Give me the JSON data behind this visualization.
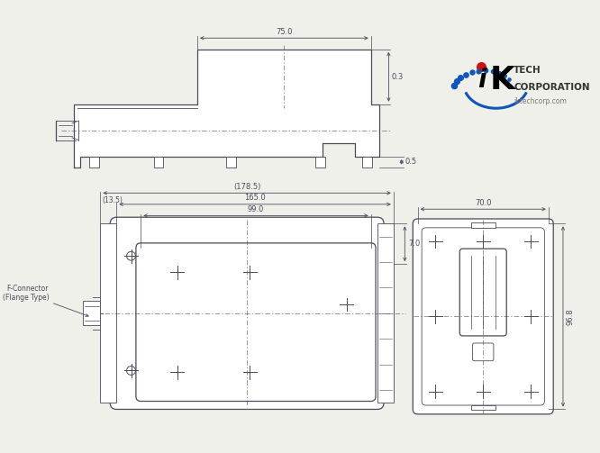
{
  "bg_color": "#f0f0eb",
  "line_color": "#4a4a5a",
  "dim_color": "#4a4a5a",
  "thin_lw": 0.6,
  "med_lw": 0.9,
  "font_size": 6.0,
  "top_view": {
    "dim_75": "75.0",
    "dim_03": "0.3",
    "dim_05": "0.5"
  },
  "front_view": {
    "dim_178_5": "(178.5)",
    "dim_13_5": "(13.5)",
    "dim_165": "165.0",
    "dim_99": "99.0",
    "dim_7": "7.0",
    "label_connector": "F-Connector\n(Flange Type)"
  },
  "end_view": {
    "dim_70": "70.0",
    "dim_96_8": "96.8"
  }
}
